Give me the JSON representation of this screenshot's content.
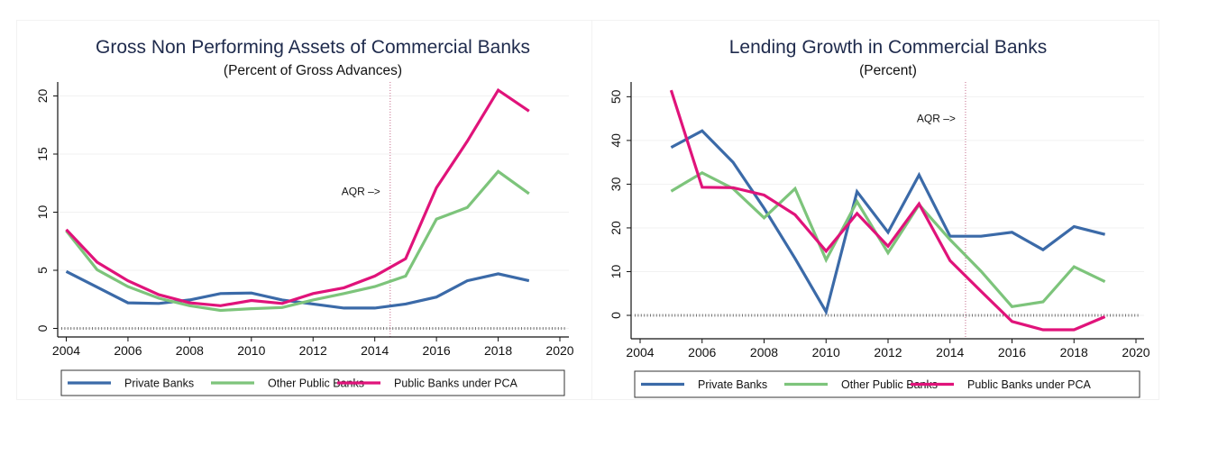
{
  "chart_data": [
    {
      "type": "line",
      "title": "Gross Non Performing Assets of Commercial Banks",
      "subtitle": "(Percent of Gross Advances)",
      "xlabel": "",
      "ylabel": "",
      "xlim": [
        2004,
        2020
      ],
      "ylim": [
        -0.7,
        21.2
      ],
      "xticks": [
        2004,
        2006,
        2008,
        2010,
        2012,
        2014,
        2016,
        2018,
        2020
      ],
      "yticks": [
        0,
        5,
        10,
        15,
        20
      ],
      "grid": true,
      "reference_line": {
        "x": 2014.5,
        "label": "AQR –>",
        "label_y": 11.8
      },
      "zero_line": true,
      "legend_position": "bottom",
      "x": [
        2004,
        2005,
        2006,
        2007,
        2008,
        2009,
        2010,
        2011,
        2012,
        2013,
        2014,
        2015,
        2016,
        2017,
        2018,
        2019
      ],
      "series": [
        {
          "name": "Private Banks",
          "color": "#3b6aa8",
          "values": [
            4.9,
            3.55,
            2.2,
            2.15,
            2.45,
            3.0,
            3.05,
            2.45,
            2.1,
            1.75,
            1.75,
            2.1,
            2.7,
            4.1,
            4.7,
            4.1
          ]
        },
        {
          "name": "Other Public Banks",
          "color": "#7dc47b",
          "values": [
            8.4,
            5.05,
            3.6,
            2.6,
            1.95,
            1.55,
            1.7,
            1.8,
            2.45,
            3.0,
            3.6,
            4.5,
            9.4,
            10.4,
            13.5,
            11.6
          ]
        },
        {
          "name": "Public Banks under PCA",
          "color": "#e0137a",
          "values": [
            8.5,
            5.7,
            4.1,
            2.9,
            2.2,
            1.95,
            2.4,
            2.15,
            3.0,
            3.5,
            4.5,
            6.0,
            12.1,
            16.1,
            20.5,
            18.7
          ]
        }
      ]
    },
    {
      "type": "line",
      "title": "Lending Growth in Commercial Banks",
      "subtitle": "(Percent)",
      "xlabel": "",
      "ylabel": "",
      "xlim": [
        2004,
        2020
      ],
      "ylim": [
        -5.4,
        53.4
      ],
      "xticks": [
        2004,
        2006,
        2008,
        2010,
        2012,
        2014,
        2016,
        2018,
        2020
      ],
      "yticks": [
        0,
        10,
        20,
        30,
        40,
        50
      ],
      "grid": true,
      "reference_line": {
        "x": 2014.5,
        "label": "AQR –>",
        "label_y": 45
      },
      "zero_line": true,
      "legend_position": "bottom",
      "x": [
        2005,
        2006,
        2007,
        2008,
        2009,
        2010,
        2011,
        2012,
        2013,
        2014,
        2015,
        2016,
        2017,
        2018,
        2019
      ],
      "series": [
        {
          "name": "Private Banks",
          "color": "#3b6aa8",
          "values": [
            38.4,
            42.2,
            35.0,
            24.5,
            13.0,
            0.8,
            28.3,
            19.0,
            32.1,
            18.1,
            18.1,
            19.0,
            15.0,
            20.3,
            18.5
          ]
        },
        {
          "name": "Other Public Banks",
          "color": "#7dc47b",
          "values": [
            28.4,
            32.6,
            29.0,
            22.3,
            29.0,
            12.7,
            26.0,
            14.3,
            25.3,
            17.3,
            10.1,
            2.0,
            3.1,
            11.1,
            7.7
          ]
        },
        {
          "name": "Public Banks under PCA",
          "color": "#e0137a",
          "values": [
            51.5,
            29.3,
            29.2,
            27.5,
            23.0,
            14.7,
            23.3,
            15.8,
            25.5,
            12.5,
            5.5,
            -1.4,
            -3.3,
            -3.3,
            -0.3
          ]
        }
      ]
    }
  ]
}
